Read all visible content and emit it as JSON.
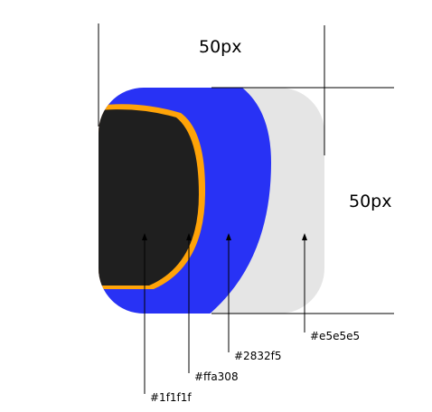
{
  "dimensions": {
    "width_label": "50px",
    "height_label": "50px"
  },
  "layers": [
    {
      "name": "background",
      "color": "#e5e5e5",
      "label": "#e5e5e5"
    },
    {
      "name": "blue",
      "color": "#2832f5",
      "label": "#2832f5"
    },
    {
      "name": "outline",
      "color": "#ffa308",
      "label": "#ffa308"
    },
    {
      "name": "dark",
      "color": "#1f1f1f",
      "label": "#1f1f1f"
    }
  ]
}
